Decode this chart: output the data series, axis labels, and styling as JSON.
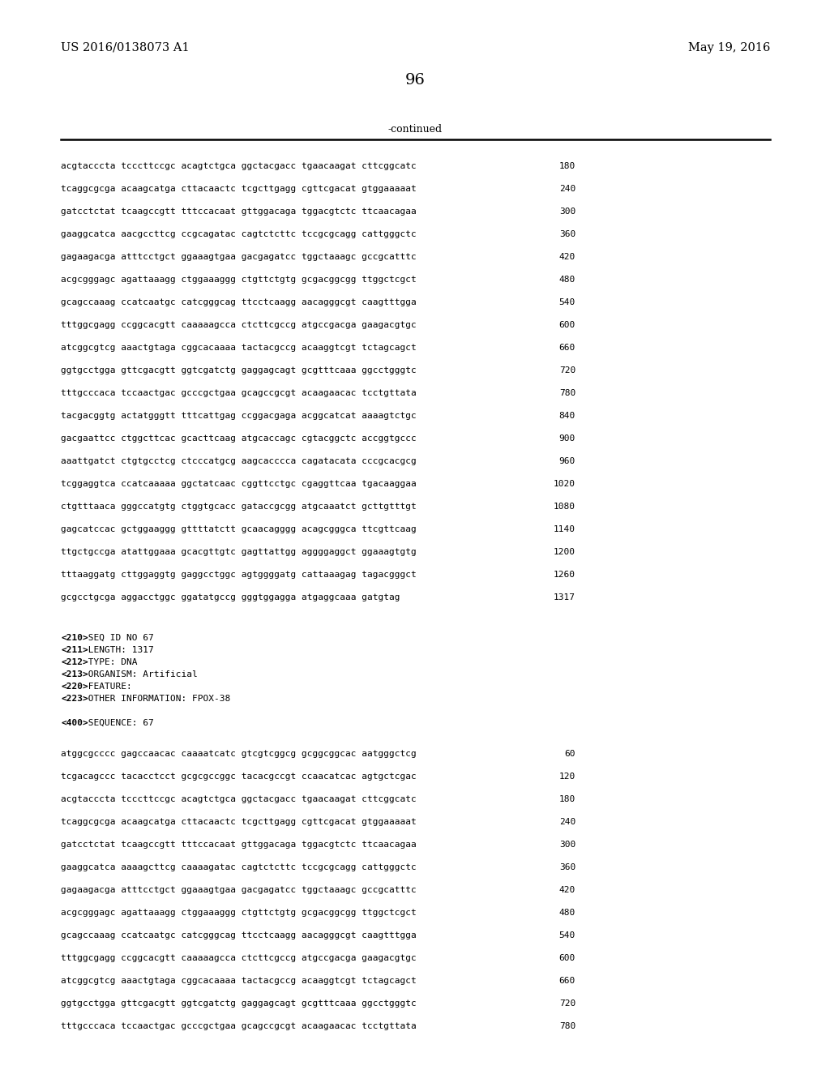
{
  "background_color": "#ffffff",
  "page_number": "96",
  "left_header": "US 2016/0138073 A1",
  "right_header": "May 19, 2016",
  "continued_label": "-continued",
  "seq1_lines": [
    {
      "text": "acgtacccta tcccttccgc acagtctgca ggctacgacc tgaacaagat cttcggcatc",
      "num": "180"
    },
    {
      "text": "tcaggcgcga acaagcatga cttacaactc tcgcttgagg cgttcgacat gtggaaaaat",
      "num": "240"
    },
    {
      "text": "gatcctctat tcaagccgtt tttccacaat gttggacaga tggacgtctc ttcaacagaa",
      "num": "300"
    },
    {
      "text": "gaaggcatca aacgccttcg ccgcagatac cagtctcttc tccgcgcagg cattgggctc",
      "num": "360"
    },
    {
      "text": "gagaagacga atttcctgct ggaaagtgaa gacgagatcc tggctaaagc gccgcatttc",
      "num": "420"
    },
    {
      "text": "acgcgggagc agattaaagg ctggaaaggg ctgttctgtg gcgacggcgg ttggctcgct",
      "num": "480"
    },
    {
      "text": "gcagccaaag ccatcaatgc catcgggcag ttcctcaagg aacagggcgt caagtttgga",
      "num": "540"
    },
    {
      "text": "tttggcgagg ccggcacgtt caaaaagcca ctcttcgccg atgccgacga gaagacgtgc",
      "num": "600"
    },
    {
      "text": "atcggcgtcg aaactgtaga cggcacaaaa tactacgccg acaaggtcgt tctagcagct",
      "num": "660"
    },
    {
      "text": "ggtgcctgga gttcgacgtt ggtcgatctg gaggagcagt gcgtttcaaa ggcctgggtc",
      "num": "720"
    },
    {
      "text": "tttgcccaca tccaactgac gcccgctgaa gcagccgcgt acaagaacac tcctgttata",
      "num": "780"
    },
    {
      "text": "tacgacggtg actatgggtt tttcattgag ccggacgaga acggcatcat aaaagtctgc",
      "num": "840"
    },
    {
      "text": "gacgaattcc ctggcttcac gcacttcaag atgcaccagc cgtacggctc accggtgccc",
      "num": "900"
    },
    {
      "text": "aaattgatct ctgtgcctcg ctcccatgcg aagcacccca cagatacata cccgcacgcg",
      "num": "960"
    },
    {
      "text": "tcggaggtca ccatcaaaaa ggctatcaac cggttcctgc cgaggttcaa tgacaaggaa",
      "num": "1020"
    },
    {
      "text": "ctgtttaaca gggccatgtg ctggtgcacc gataccgcgg atgcaaatct gcttgtttgt",
      "num": "1080"
    },
    {
      "text": "gagcatccac gctggaaggg gttttatctt gcaacagggg acagcgggca ttcgttcaag",
      "num": "1140"
    },
    {
      "text": "ttgctgccga atattggaaa gcacgttgtc gagttattgg aggggaggct ggaaagtgtg",
      "num": "1200"
    },
    {
      "text": "tttaaggatg cttggaggtg gaggcctggc agtggggatg cattaaagag tagacgggct",
      "num": "1260"
    },
    {
      "text": "gcgcctgcga aggacctggc ggatatgccg gggtggagga atgaggcaaa gatgtag",
      "num": "1317"
    }
  ],
  "metadata": [
    {
      "bold": "<210>",
      "normal": " SEQ ID NO 67"
    },
    {
      "bold": "<211>",
      "normal": " LENGTH: 1317"
    },
    {
      "bold": "<212>",
      "normal": " TYPE: DNA"
    },
    {
      "bold": "<213>",
      "normal": " ORGANISM: Artificial"
    },
    {
      "bold": "<220>",
      "normal": " FEATURE:"
    },
    {
      "bold": "<223>",
      "normal": " OTHER INFORMATION: FPOX-38"
    }
  ],
  "seq400_label_bold": "<400>",
  "seq400_label_normal": " SEQUENCE: 67",
  "seq2_lines": [
    {
      "text": "atggcgcccc gagccaacac caaaatcatc gtcgtcggcg gcggcggcac aatgggctcg",
      "num": "60"
    },
    {
      "text": "tcgacagccc tacacctcct gcgcgccggc tacacgccgt ccaacatcac agtgctcgac",
      "num": "120"
    },
    {
      "text": "acgtacccta tcccttccgc acagtctgca ggctacgacc tgaacaagat cttcggcatc",
      "num": "180"
    },
    {
      "text": "tcaggcgcga acaagcatga cttacaactc tcgcttgagg cgttcgacat gtggaaaaat",
      "num": "240"
    },
    {
      "text": "gatcctctat tcaagccgtt tttccacaat gttggacaga tggacgtctc ttcaacagaa",
      "num": "300"
    },
    {
      "text": "gaaggcatca aaaagcttcg caaaagatac cagtctcttc tccgcgcagg cattgggctc",
      "num": "360"
    },
    {
      "text": "gagaagacga atttcctgct ggaaagtgaa gacgagatcc tggctaaagc gccgcatttc",
      "num": "420"
    },
    {
      "text": "acgcgggagc agattaaagg ctggaaaggg ctgttctgtg gcgacggcgg ttggctcgct",
      "num": "480"
    },
    {
      "text": "gcagccaaag ccatcaatgc catcgggcag ttcctcaagg aacagggcgt caagtttgga",
      "num": "540"
    },
    {
      "text": "tttggcgagg ccggcacgtt caaaaagcca ctcttcgccg atgccgacga gaagacgtgc",
      "num": "600"
    },
    {
      "text": "atcggcgtcg aaactgtaga cggcacaaaa tactacgccg acaaggtcgt tctagcagct",
      "num": "660"
    },
    {
      "text": "ggtgcctgga gttcgacgtt ggtcgatctg gaggagcagt gcgtttcaaa ggcctgggtc",
      "num": "720"
    },
    {
      "text": "tttgcccaca tccaactgac gcccgctgaa gcagccgcgt acaagaacac tcctgttata",
      "num": "780"
    }
  ]
}
